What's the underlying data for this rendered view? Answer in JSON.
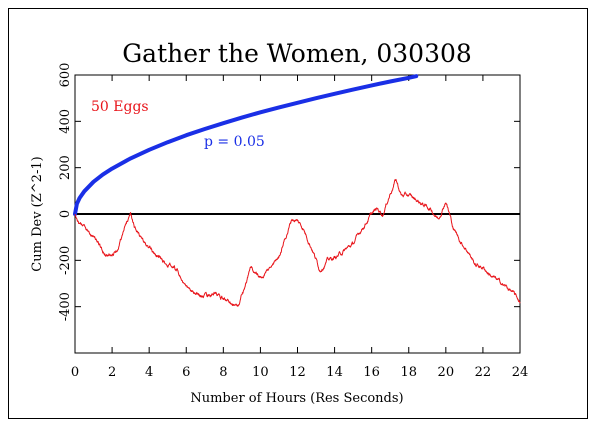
{
  "chart_data": {
    "type": "line",
    "title": "Gather the Women, 030308",
    "xlabel": "Number of Hours (Res Seconds)",
    "ylabel": "Cum Dev (Z^2-1)",
    "xlim": [
      0,
      24
    ],
    "ylim": [
      -600,
      600
    ],
    "x_ticks": [
      0,
      2,
      4,
      6,
      8,
      10,
      12,
      14,
      16,
      18,
      20,
      22,
      24
    ],
    "x_tick_labels": [
      "0",
      "2",
      "4",
      "6",
      "8",
      "10",
      "12",
      "14",
      "16",
      "18",
      "20",
      "22",
      "24"
    ],
    "y_ticks": [
      -400,
      -200,
      0,
      200,
      400,
      600
    ],
    "y_tick_labels": [
      "-400",
      "-200",
      "0",
      "200",
      "400",
      "600"
    ],
    "grid": false,
    "annotations": {
      "eggs": "50 Eggs",
      "p_label": "p = 0.05"
    },
    "colors": {
      "data_line": "#e8141a",
      "probability_envelope": "#1a2fe6",
      "baseline": "#000000",
      "eggs_label": "#e8141a",
      "p_label": "#1a2fe6"
    },
    "series": [
      {
        "kind": "cumulative_deviation",
        "color": "#e8141a",
        "x": [
          0,
          0.2,
          0.5,
          1,
          1.5,
          2,
          2.3,
          2.6,
          3,
          3.2,
          3.5,
          4,
          4.5,
          5,
          5.5,
          6,
          6.5,
          7,
          7.5,
          8,
          8.5,
          8.8,
          9.2,
          9.5,
          10,
          10.5,
          11,
          11.4,
          11.7,
          12,
          12.3,
          12.8,
          13.2,
          13.6,
          14,
          14.5,
          15,
          15.5,
          16,
          16.3,
          16.6,
          17,
          17.3,
          17.6,
          18,
          18.4,
          18.8,
          19.2,
          19.6,
          20,
          20.4,
          20.8,
          21.2,
          21.6,
          22,
          22.5,
          23,
          23.5,
          23.8,
          24
        ],
        "y": [
          0,
          -40,
          -50,
          -90,
          -160,
          -180,
          -140,
          -80,
          10,
          -60,
          -100,
          -150,
          -180,
          -220,
          -240,
          -320,
          -350,
          -360,
          -340,
          -370,
          -380,
          -400,
          -300,
          -230,
          -280,
          -240,
          -180,
          -90,
          -20,
          -30,
          -60,
          -150,
          -240,
          -200,
          -190,
          -160,
          -130,
          -60,
          0,
          20,
          0,
          90,
          150,
          80,
          80,
          60,
          40,
          20,
          -20,
          60,
          -60,
          -120,
          -160,
          -220,
          -230,
          -270,
          -300,
          -330,
          -360,
          -380
        ]
      },
      {
        "kind": "probability_envelope",
        "name": "p = 0.05",
        "color": "#1a2fe6",
        "x": [
          0,
          0.1,
          0.25,
          0.5,
          1,
          1.5,
          2,
          3,
          4,
          5,
          6,
          7,
          8,
          9,
          10,
          11,
          12,
          13,
          14,
          15,
          16,
          17,
          18,
          18.4
        ],
        "y": [
          0,
          44,
          69,
          98,
          139,
          170,
          196,
          240,
          277,
          310,
          340,
          367,
          392,
          416,
          439,
          460,
          480,
          500,
          519,
          537,
          555,
          572,
          588,
          595
        ]
      }
    ]
  }
}
